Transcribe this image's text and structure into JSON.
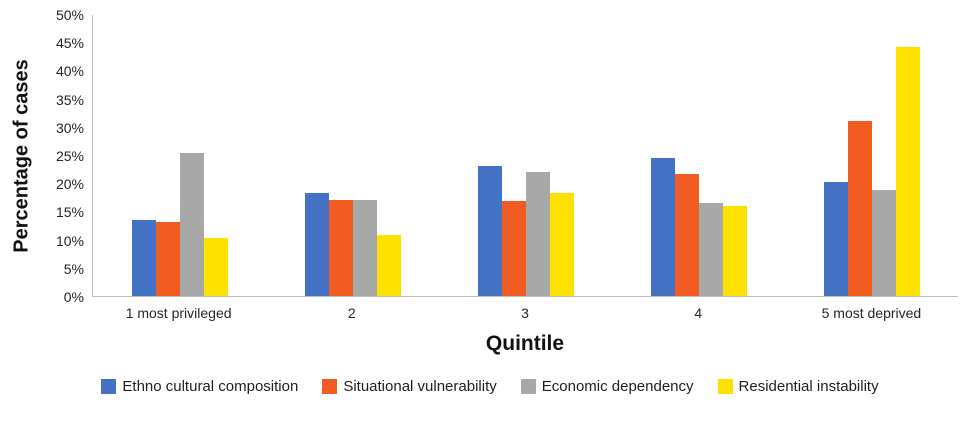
{
  "chart_data": {
    "type": "bar",
    "title": "",
    "xlabel": "Quintile",
    "ylabel": "Percentage of cases",
    "categories": [
      "1 most privileged",
      "2",
      "3",
      "4",
      "5 most deprived"
    ],
    "series": [
      {
        "name": "Ethno cultural composition",
        "color": "#4472C4",
        "values": [
          13.6,
          18.4,
          23.1,
          24.5,
          20.3
        ]
      },
      {
        "name": "Situational vulnerability",
        "color": "#F15C22",
        "values": [
          13.2,
          17.0,
          16.9,
          21.7,
          31.2
        ]
      },
      {
        "name": "Economic dependency",
        "color": "#A8A8A8",
        "values": [
          25.5,
          17.0,
          22.1,
          16.5,
          18.9
        ]
      },
      {
        "name": "Residential instability",
        "color": "#FFE100",
        "values": [
          10.3,
          10.8,
          18.4,
          16.0,
          44.3
        ]
      }
    ],
    "ylim": [
      0,
      50
    ],
    "ytick_step": 5,
    "ytick_labels": [
      "0%",
      "5%",
      "10%",
      "15%",
      "20%",
      "25%",
      "30%",
      "35%",
      "40%",
      "45%",
      "50%"
    ],
    "grid": false,
    "legend_position": "bottom",
    "axis_color": "#bfbfbf"
  }
}
